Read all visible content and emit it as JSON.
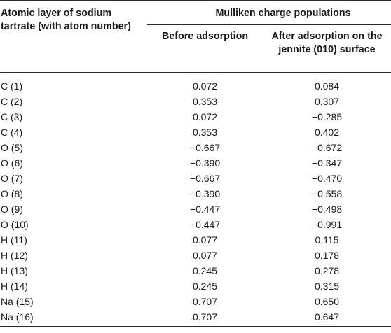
{
  "header": {
    "corner_label": "Atomic layer of sodium tartrate (with atom number)",
    "group_label": "Mulliken charge populations",
    "col_before": "Before adsorption",
    "col_after": "After adsorption on the jennite (010) surface"
  },
  "rows": [
    {
      "atom": "C (1)",
      "before": "0.072",
      "after": "0.084"
    },
    {
      "atom": "C (2)",
      "before": "0.353",
      "after": "0.307"
    },
    {
      "atom": "C (3)",
      "before": "0.072",
      "after": "−0.285"
    },
    {
      "atom": "C (4)",
      "before": "0.353",
      "after": "0.402"
    },
    {
      "atom": "O (5)",
      "before": "−0.667",
      "after": "−0.672"
    },
    {
      "atom": "O (6)",
      "before": "−0.390",
      "after": "−0.347"
    },
    {
      "atom": "O (7)",
      "before": "−0.667",
      "after": "−0.470"
    },
    {
      "atom": "O (8)",
      "before": "−0.390",
      "after": "−0.558"
    },
    {
      "atom": "O (9)",
      "before": "−0.447",
      "after": "−0.498"
    },
    {
      "atom": "O (10)",
      "before": "−0.447",
      "after": "−0.991"
    },
    {
      "atom": "H (11)",
      "before": "0.077",
      "after": "0.115"
    },
    {
      "atom": "H (12)",
      "before": "0.077",
      "after": "0.178"
    },
    {
      "atom": "H (13)",
      "before": "0.245",
      "after": "0.278"
    },
    {
      "atom": "H (14)",
      "before": "0.245",
      "after": "0.315"
    },
    {
      "atom": "Na (15)",
      "before": "0.707",
      "after": "0.650"
    },
    {
      "atom": "Na (16)",
      "before": "0.707",
      "after": "0.647"
    }
  ]
}
